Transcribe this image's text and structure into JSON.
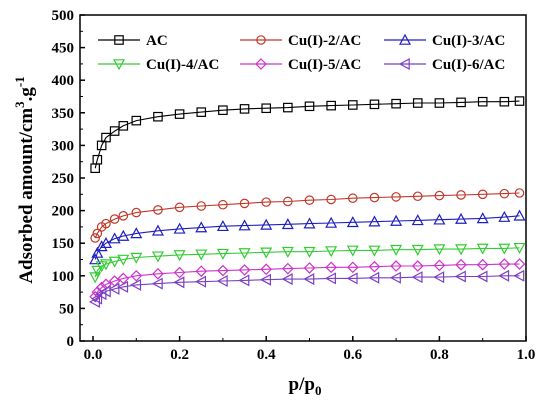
{
  "chart_data": {
    "type": "line",
    "xlabel": "p/p",
    "xlabel_sub": "0",
    "ylabel": "Adsorbed amount/cm",
    "ylabel_sup": "3",
    "ylabel_tail": ".g",
    "ylabel_sup2": "-1",
    "xlim": [
      0,
      1.0
    ],
    "ylim": [
      0,
      500
    ],
    "xticks": [
      0.0,
      0.2,
      0.4,
      0.6,
      0.8,
      1.0
    ],
    "xtick_labels": [
      "0.0",
      "0.2",
      "0.4",
      "0.6",
      "0.8",
      "1.0"
    ],
    "yticks": [
      0,
      50,
      100,
      150,
      200,
      250,
      300,
      350,
      400,
      450,
      500
    ],
    "ytick_labels": [
      "0",
      "50",
      "100",
      "150",
      "200",
      "250",
      "300",
      "350",
      "400",
      "450",
      "500"
    ],
    "grid": false,
    "legend_position": "top",
    "series": [
      {
        "name": "AC",
        "marker": "square",
        "color": "#000000",
        "points": [
          [
            0.005,
            265
          ],
          [
            0.01,
            278
          ],
          [
            0.02,
            300
          ],
          [
            0.03,
            312
          ],
          [
            0.05,
            322
          ],
          [
            0.07,
            330
          ],
          [
            0.1,
            338
          ],
          [
            0.15,
            344
          ],
          [
            0.2,
            348
          ],
          [
            0.25,
            351
          ],
          [
            0.3,
            354
          ],
          [
            0.35,
            356
          ],
          [
            0.4,
            357
          ],
          [
            0.45,
            358
          ],
          [
            0.5,
            360
          ],
          [
            0.55,
            361
          ],
          [
            0.6,
            362
          ],
          [
            0.65,
            363
          ],
          [
            0.7,
            364
          ],
          [
            0.75,
            365
          ],
          [
            0.8,
            365
          ],
          [
            0.85,
            366
          ],
          [
            0.9,
            367
          ],
          [
            0.95,
            367
          ],
          [
            0.985,
            368
          ]
        ]
      },
      {
        "name": "Cu(I)-2/AC",
        "marker": "circle",
        "color": "#c0392b",
        "points": [
          [
            0.005,
            158
          ],
          [
            0.01,
            165
          ],
          [
            0.02,
            175
          ],
          [
            0.03,
            180
          ],
          [
            0.05,
            187
          ],
          [
            0.07,
            192
          ],
          [
            0.1,
            197
          ],
          [
            0.15,
            201
          ],
          [
            0.2,
            205
          ],
          [
            0.25,
            207
          ],
          [
            0.3,
            209
          ],
          [
            0.35,
            211
          ],
          [
            0.4,
            213
          ],
          [
            0.45,
            214
          ],
          [
            0.5,
            216
          ],
          [
            0.55,
            217
          ],
          [
            0.6,
            219
          ],
          [
            0.65,
            220
          ],
          [
            0.7,
            221
          ],
          [
            0.75,
            222
          ],
          [
            0.8,
            223
          ],
          [
            0.85,
            224
          ],
          [
            0.9,
            225
          ],
          [
            0.95,
            226
          ],
          [
            0.985,
            227
          ]
        ]
      },
      {
        "name": "Cu(I)-3/AC",
        "marker": "triangle-up",
        "color": "#1f1fbf",
        "points": [
          [
            0.005,
            125
          ],
          [
            0.01,
            135
          ],
          [
            0.02,
            145
          ],
          [
            0.03,
            150
          ],
          [
            0.05,
            157
          ],
          [
            0.07,
            161
          ],
          [
            0.1,
            165
          ],
          [
            0.15,
            169
          ],
          [
            0.2,
            172
          ],
          [
            0.25,
            174
          ],
          [
            0.3,
            176
          ],
          [
            0.35,
            177
          ],
          [
            0.4,
            178
          ],
          [
            0.45,
            179
          ],
          [
            0.5,
            180
          ],
          [
            0.55,
            181
          ],
          [
            0.6,
            182
          ],
          [
            0.65,
            183
          ],
          [
            0.7,
            184
          ],
          [
            0.75,
            185
          ],
          [
            0.8,
            186
          ],
          [
            0.85,
            187
          ],
          [
            0.9,
            188
          ],
          [
            0.95,
            190
          ],
          [
            0.985,
            192
          ]
        ]
      },
      {
        "name": "Cu(I)-4/AC",
        "marker": "triangle-down",
        "color": "#33cc33",
        "points": [
          [
            0.005,
            98
          ],
          [
            0.01,
            108
          ],
          [
            0.02,
            115
          ],
          [
            0.03,
            118
          ],
          [
            0.05,
            122
          ],
          [
            0.07,
            125
          ],
          [
            0.1,
            128
          ],
          [
            0.15,
            130
          ],
          [
            0.2,
            132
          ],
          [
            0.25,
            133
          ],
          [
            0.3,
            134
          ],
          [
            0.35,
            135
          ],
          [
            0.4,
            136
          ],
          [
            0.45,
            137
          ],
          [
            0.5,
            137
          ],
          [
            0.55,
            138
          ],
          [
            0.6,
            139
          ],
          [
            0.65,
            139
          ],
          [
            0.7,
            140
          ],
          [
            0.75,
            140
          ],
          [
            0.8,
            141
          ],
          [
            0.85,
            141
          ],
          [
            0.9,
            142
          ],
          [
            0.95,
            142
          ],
          [
            0.985,
            143
          ]
        ]
      },
      {
        "name": "Cu(I)-5/AC",
        "marker": "diamond",
        "color": "#cc33cc",
        "points": [
          [
            0.005,
            68
          ],
          [
            0.01,
            75
          ],
          [
            0.02,
            82
          ],
          [
            0.03,
            87
          ],
          [
            0.05,
            92
          ],
          [
            0.07,
            96
          ],
          [
            0.1,
            100
          ],
          [
            0.15,
            103
          ],
          [
            0.2,
            105
          ],
          [
            0.25,
            107
          ],
          [
            0.3,
            108
          ],
          [
            0.35,
            109
          ],
          [
            0.4,
            110
          ],
          [
            0.45,
            111
          ],
          [
            0.5,
            112
          ],
          [
            0.55,
            113
          ],
          [
            0.6,
            113
          ],
          [
            0.65,
            114
          ],
          [
            0.7,
            115
          ],
          [
            0.75,
            115
          ],
          [
            0.8,
            116
          ],
          [
            0.85,
            117
          ],
          [
            0.9,
            117
          ],
          [
            0.95,
            118
          ],
          [
            0.985,
            118
          ]
        ]
      },
      {
        "name": "Cu(I)-6/AC",
        "marker": "triangle-left",
        "color": "#7b3fc4",
        "points": [
          [
            0.005,
            60
          ],
          [
            0.01,
            65
          ],
          [
            0.02,
            72
          ],
          [
            0.03,
            76
          ],
          [
            0.05,
            80
          ],
          [
            0.07,
            83
          ],
          [
            0.1,
            86
          ],
          [
            0.15,
            88
          ],
          [
            0.2,
            90
          ],
          [
            0.25,
            91
          ],
          [
            0.3,
            92
          ],
          [
            0.35,
            93
          ],
          [
            0.4,
            94
          ],
          [
            0.45,
            95
          ],
          [
            0.5,
            95
          ],
          [
            0.55,
            96
          ],
          [
            0.6,
            96
          ],
          [
            0.65,
            97
          ],
          [
            0.7,
            97
          ],
          [
            0.75,
            98
          ],
          [
            0.8,
            98
          ],
          [
            0.85,
            99
          ],
          [
            0.9,
            99
          ],
          [
            0.95,
            100
          ],
          [
            0.985,
            100
          ]
        ]
      }
    ]
  }
}
